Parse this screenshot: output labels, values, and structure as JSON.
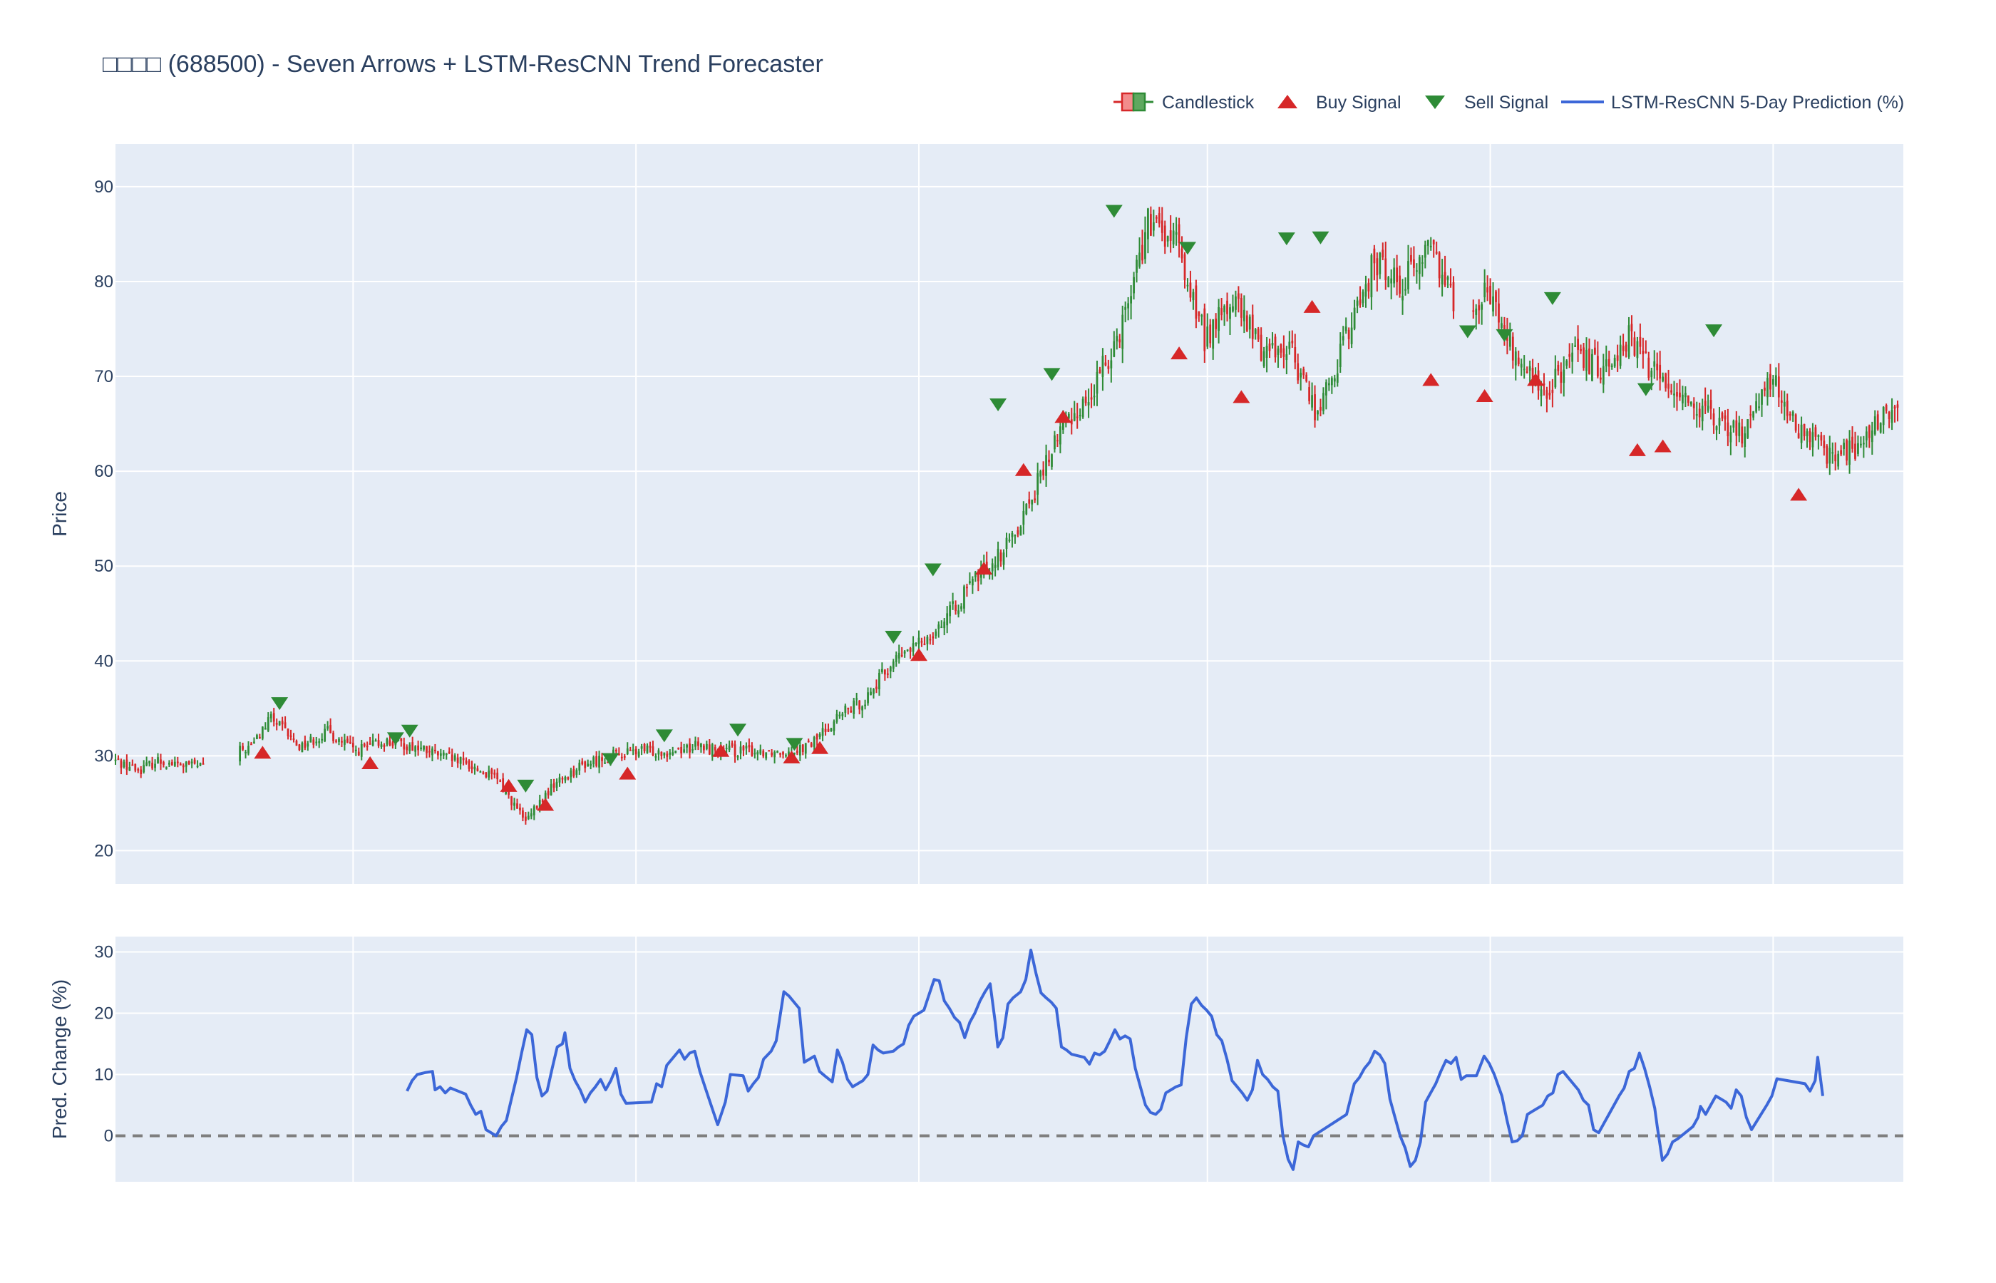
{
  "chart_data": [
    {
      "type": "candlestick",
      "title": "□□□□ (688500) - Seven Arrows + LSTM-ResCNN Trend Forecaster",
      "ylabel": "Price",
      "ylim": [
        16.5,
        94.5
      ],
      "yticks": [
        20,
        30,
        40,
        50,
        60,
        70,
        80,
        90
      ],
      "grid": true,
      "legend_position": "top-right",
      "legend": [
        "Candlestick",
        "Buy Signal",
        "Sell Signal",
        "LSTM-ResCNN 5-Day Prediction (%)"
      ],
      "colors": {
        "up": "#2e8b36",
        "down": "#d62728",
        "buy": "#d62728",
        "sell": "#2e8b36",
        "prediction": "#3c67d8",
        "plot_bg": "#e5ecf6",
        "grid": "#ffffff",
        "text": "#2a3f5f"
      },
      "x_range": [
        0,
        630
      ],
      "x_grid": [
        84,
        184,
        284,
        386,
        486,
        586
      ],
      "close_anchors": [
        [
          0,
          29.5
        ],
        [
          8,
          28.5
        ],
        [
          15,
          29.5
        ],
        [
          22,
          29
        ],
        [
          30,
          29
        ],
        [
          40,
          30
        ],
        [
          48,
          31
        ],
        [
          55,
          34
        ],
        [
          65,
          31
        ],
        [
          75,
          32.5
        ],
        [
          85,
          30.5
        ],
        [
          95,
          31.5
        ],
        [
          105,
          31
        ],
        [
          115,
          30
        ],
        [
          125,
          29
        ],
        [
          135,
          27.5
        ],
        [
          145,
          23
        ],
        [
          155,
          27
        ],
        [
          165,
          29
        ],
        [
          175,
          30
        ],
        [
          185,
          30.5
        ],
        [
          195,
          30.5
        ],
        [
          205,
          31
        ],
        [
          215,
          30.5
        ],
        [
          225,
          30.5
        ],
        [
          235,
          30.5
        ],
        [
          245,
          31
        ],
        [
          255,
          34
        ],
        [
          265,
          36
        ],
        [
          275,
          40
        ],
        [
          285,
          42
        ],
        [
          295,
          45
        ],
        [
          305,
          49
        ],
        [
          315,
          52
        ],
        [
          325,
          58
        ],
        [
          335,
          65
        ],
        [
          345,
          68
        ],
        [
          355,
          75
        ],
        [
          365,
          86
        ],
        [
          375,
          84
        ],
        [
          385,
          74
        ],
        [
          395,
          78
        ],
        [
          405,
          73
        ],
        [
          415,
          73
        ],
        [
          425,
          66
        ],
        [
          435,
          74
        ],
        [
          445,
          82
        ],
        [
          455,
          80
        ],
        [
          465,
          84
        ],
        [
          475,
          77
        ],
        [
          485,
          79
        ],
        [
          495,
          72
        ],
        [
          505,
          68
        ],
        [
          515,
          72
        ],
        [
          525,
          71
        ],
        [
          535,
          74
        ],
        [
          545,
          70
        ],
        [
          555,
          68
        ],
        [
          565,
          65
        ],
        [
          575,
          64
        ],
        [
          585,
          70
        ],
        [
          595,
          64
        ],
        [
          605,
          62
        ],
        [
          615,
          62
        ],
        [
          625,
          66
        ]
      ],
      "gaps": [
        [
          31,
          44
        ],
        [
          473,
          480
        ]
      ],
      "buy_signals": [
        [
          52,
          30.3
        ],
        [
          90,
          29.2
        ],
        [
          139,
          26.8
        ],
        [
          152,
          24.8
        ],
        [
          181,
          28.1
        ],
        [
          214,
          30.5
        ],
        [
          239,
          29.8
        ],
        [
          249,
          30.8
        ],
        [
          284,
          40.6
        ],
        [
          307,
          49.7
        ],
        [
          321,
          60.1
        ],
        [
          335,
          65.7
        ],
        [
          376,
          72.4
        ],
        [
          398,
          67.8
        ],
        [
          423,
          77.3
        ],
        [
          465,
          69.6
        ],
        [
          484,
          67.9
        ],
        [
          502,
          69.6
        ],
        [
          538,
          62.2
        ],
        [
          547,
          62.6
        ],
        [
          595,
          57.5
        ]
      ],
      "sell_signals": [
        [
          58,
          35.5
        ],
        [
          99,
          31.8
        ],
        [
          104,
          32.6
        ],
        [
          145,
          26.8
        ],
        [
          175,
          29.6
        ],
        [
          194,
          32.1
        ],
        [
          220,
          32.7
        ],
        [
          240,
          31.2
        ],
        [
          275,
          42.5
        ],
        [
          289,
          49.6
        ],
        [
          312,
          67
        ],
        [
          331,
          70.2
        ],
        [
          353,
          87.4
        ],
        [
          379,
          83.5
        ],
        [
          414,
          84.5
        ],
        [
          426,
          84.6
        ],
        [
          478,
          74.7
        ],
        [
          491,
          74.3
        ],
        [
          508,
          78.2
        ],
        [
          541,
          68.6
        ],
        [
          565,
          74.8
        ]
      ]
    },
    {
      "type": "line",
      "ylabel": "Pred. Change (%)",
      "ylim": [
        -7.5,
        32.5
      ],
      "yticks": [
        0,
        10,
        20,
        30
      ],
      "reference_line": 0,
      "grid": true,
      "points": [
        [
          103,
          7.3
        ],
        [
          105,
          9
        ],
        [
          107,
          10
        ],
        [
          110,
          10.3
        ],
        [
          113,
          10.5
        ],
        [
          114,
          7.5
        ],
        [
          116,
          8
        ],
        [
          118,
          7
        ],
        [
          120,
          7.8
        ],
        [
          123,
          7.3
        ],
        [
          126,
          6.8
        ],
        [
          128,
          5
        ],
        [
          130,
          3.5
        ],
        [
          132,
          4
        ],
        [
          134,
          1
        ],
        [
          136,
          0.5
        ],
        [
          138,
          0
        ],
        [
          140,
          1.5
        ],
        [
          142,
          2.5
        ],
        [
          144,
          6
        ],
        [
          146,
          9.5
        ],
        [
          148,
          13.5
        ],
        [
          150,
          17.3
        ],
        [
          152,
          16.5
        ],
        [
          154,
          9.5
        ],
        [
          156,
          6.5
        ],
        [
          158,
          7.3
        ],
        [
          160,
          11
        ],
        [
          162,
          14.5
        ],
        [
          164,
          15
        ],
        [
          165,
          16.8
        ],
        [
          167,
          11
        ],
        [
          169,
          9
        ],
        [
          171,
          7.5
        ],
        [
          173,
          5.5
        ],
        [
          175,
          7
        ],
        [
          177,
          8
        ],
        [
          179,
          9.2
        ],
        [
          181,
          7.5
        ],
        [
          183,
          9
        ],
        [
          185,
          11
        ],
        [
          187,
          6.8
        ],
        [
          189,
          5.3
        ],
        [
          199,
          5.5
        ],
        [
          201,
          8.5
        ],
        [
          203,
          8
        ],
        [
          205,
          11.5
        ],
        [
          207,
          12.5
        ],
        [
          210,
          14
        ],
        [
          212,
          12.5
        ],
        [
          214,
          13.5
        ],
        [
          216,
          13.8
        ],
        [
          218,
          10.5
        ],
        [
          220,
          8
        ],
        [
          222,
          5.5
        ],
        [
          225,
          1.8
        ],
        [
          228,
          5.5
        ],
        [
          230,
          10
        ],
        [
          235,
          9.8
        ],
        [
          237,
          7.3
        ],
        [
          239,
          8.5
        ],
        [
          241,
          9.5
        ],
        [
          243,
          12.5
        ],
        [
          246,
          13.8
        ],
        [
          248,
          15.5
        ],
        [
          251,
          23.5
        ],
        [
          253,
          22.8
        ],
        [
          255,
          21.8
        ],
        [
          257,
          20.8
        ],
        [
          259,
          12
        ],
        [
          261,
          12.5
        ],
        [
          263,
          13
        ],
        [
          265,
          10.5
        ],
        [
          267,
          9.8
        ],
        [
          270,
          8.8
        ],
        [
          272,
          14
        ],
        [
          274,
          12
        ],
        [
          276,
          9.2
        ],
        [
          278,
          8
        ],
        [
          280,
          8.5
        ],
        [
          282,
          9
        ],
        [
          284,
          10
        ],
        [
          286,
          14.8
        ],
        [
          288,
          14
        ],
        [
          290,
          13.5
        ],
        [
          294,
          13.8
        ],
        [
          296,
          14.5
        ],
        [
          298,
          15
        ],
        [
          300,
          18
        ],
        [
          302,
          19.5
        ],
        [
          306,
          20.5
        ],
        [
          308,
          23
        ],
        [
          310,
          25.5
        ],
        [
          312,
          25.3
        ],
        [
          314,
          22
        ],
        [
          316,
          20.8
        ],
        [
          318,
          19.3
        ],
        [
          320,
          18.5
        ],
        [
          322,
          16
        ],
        [
          324,
          18.5
        ],
        [
          326,
          20
        ],
        [
          328,
          22
        ],
        [
          330,
          23.5
        ],
        [
          332,
          24.8
        ],
        [
          334,
          18.5
        ],
        [
          335,
          14.5
        ],
        [
          337,
          16
        ],
        [
          339,
          21.5
        ],
        [
          341,
          22.5
        ],
        [
          344,
          23.5
        ],
        [
          346,
          25.5
        ],
        [
          348,
          30.3
        ],
        [
          350,
          26.5
        ],
        [
          352,
          23.3
        ],
        [
          354,
          22.5
        ],
        [
          356,
          21.8
        ],
        [
          358,
          20.8
        ],
        [
          360,
          14.5
        ],
        [
          362,
          14
        ],
        [
          364,
          13.3
        ],
        [
          369,
          12.8
        ],
        [
          371,
          11.7
        ],
        [
          373,
          13.5
        ],
        [
          375,
          13.2
        ],
        [
          377,
          13.8
        ],
        [
          379,
          15.5
        ],
        [
          381,
          17.3
        ],
        [
          383,
          15.8
        ],
        [
          385,
          16.3
        ],
        [
          387,
          15.8
        ],
        [
          389,
          11
        ],
        [
          391,
          8
        ],
        [
          393,
          5
        ],
        [
          395,
          3.8
        ],
        [
          397,
          3.5
        ],
        [
          399,
          4.3
        ],
        [
          401,
          7
        ],
        [
          403,
          7.5
        ],
        [
          405,
          8
        ],
        [
          407,
          8.3
        ],
        [
          409,
          16
        ],
        [
          411,
          21.5
        ],
        [
          413,
          22.5
        ],
        [
          415,
          21.3
        ],
        [
          417,
          20.5
        ],
        [
          419,
          19.5
        ],
        [
          421,
          16.5
        ],
        [
          423,
          15.5
        ],
        [
          425,
          12.5
        ],
        [
          427,
          9
        ],
        [
          429,
          8
        ],
        [
          431,
          7
        ],
        [
          433,
          5.8
        ],
        [
          435,
          7.5
        ],
        [
          437,
          12.3
        ],
        [
          439,
          10
        ],
        [
          441,
          9.2
        ],
        [
          443,
          8
        ],
        [
          445,
          7.3
        ],
        [
          447,
          0
        ],
        [
          449,
          -3.8
        ],
        [
          451,
          -5.5
        ],
        [
          453,
          -1
        ],
        [
          455,
          -1.5
        ],
        [
          457,
          -1.8
        ],
        [
          459,
          0
        ],
        [
          472,
          3.5
        ],
        [
          475,
          8.5
        ],
        [
          477,
          9.5
        ],
        [
          479,
          11
        ],
        [
          481,
          12
        ],
        [
          483,
          13.8
        ],
        [
          485,
          13.2
        ],
        [
          487,
          11.8
        ],
        [
          489,
          6
        ],
        [
          491,
          3
        ],
        [
          493,
          0
        ],
        [
          495,
          -2
        ],
        [
          497,
          -5
        ],
        [
          499,
          -4
        ],
        [
          501,
          -1
        ],
        [
          503,
          5.5
        ],
        [
          505,
          7
        ],
        [
          507,
          8.5
        ],
        [
          509,
          10.5
        ],
        [
          511,
          12.3
        ],
        [
          513,
          11.8
        ],
        [
          515,
          12.8
        ],
        [
          517,
          9.2
        ],
        [
          519,
          9.8
        ],
        [
          523,
          9.8
        ],
        [
          526,
          13
        ],
        [
          528,
          11.8
        ],
        [
          530,
          10
        ],
        [
          533,
          6.5
        ],
        [
          535,
          2.5
        ],
        [
          537,
          -1
        ],
        [
          539,
          -0.8
        ],
        [
          541,
          0
        ],
        [
          543,
          3.5
        ],
        [
          545,
          4
        ],
        [
          547,
          4.5
        ],
        [
          549,
          5
        ],
        [
          551,
          6.5
        ],
        [
          553,
          7
        ],
        [
          555,
          10
        ],
        [
          557,
          10.5
        ],
        [
          559,
          9.5
        ],
        [
          561,
          8.5
        ],
        [
          563,
          7.5
        ],
        [
          565,
          5.8
        ],
        [
          567,
          5
        ],
        [
          569,
          1
        ],
        [
          571,
          0.5
        ],
        [
          573,
          2
        ],
        [
          575,
          3.5
        ],
        [
          577,
          5
        ],
        [
          579,
          6.5
        ],
        [
          581,
          7.8
        ],
        [
          583,
          10.5
        ],
        [
          585,
          11
        ],
        [
          587,
          13.5
        ],
        [
          589,
          11
        ],
        [
          591,
          8
        ],
        [
          593,
          4.5
        ],
        [
          594,
          1.5
        ],
        [
          596,
          -4
        ],
        [
          598,
          -3
        ],
        [
          600,
          -1
        ],
        [
          602,
          -0.5
        ],
        [
          605,
          0.5
        ],
        [
          608,
          1.5
        ],
        [
          610,
          3
        ],
        [
          611,
          4.8
        ],
        [
          613,
          3.5
        ],
        [
          615,
          5
        ],
        [
          617,
          6.5
        ],
        [
          621,
          5.5
        ],
        [
          623,
          4.5
        ],
        [
          625,
          7.5
        ],
        [
          627,
          6.5
        ],
        [
          629,
          3
        ],
        [
          631,
          1
        ],
        [
          634,
          3
        ],
        [
          637,
          5
        ],
        [
          639,
          6.5
        ],
        [
          641,
          9.3
        ],
        [
          652,
          8.5
        ],
        [
          654,
          7.3
        ],
        [
          656,
          9
        ],
        [
          657,
          12.8
        ],
        [
          659,
          6.5
        ]
      ]
    }
  ]
}
